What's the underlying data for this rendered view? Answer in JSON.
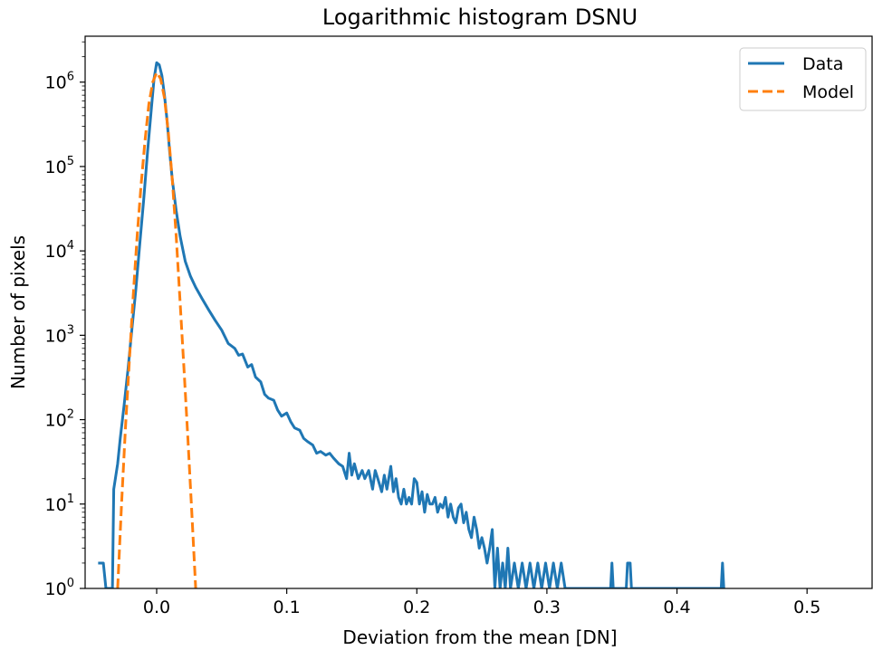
{
  "chart_data": {
    "type": "line",
    "title": "Logarithmic histogram DSNU",
    "xlabel": "Deviation from the mean [DN]",
    "ylabel": "Number of pixels",
    "xlim": [
      -0.055,
      0.55
    ],
    "ylim": [
      1,
      3500000
    ],
    "yscale": "log",
    "grid": false,
    "legend_position": "top-right",
    "xticks": [
      {
        "value": 0.0,
        "label": "0.0"
      },
      {
        "value": 0.1,
        "label": "0.1"
      },
      {
        "value": 0.2,
        "label": "0.2"
      },
      {
        "value": 0.3,
        "label": "0.3"
      },
      {
        "value": 0.4,
        "label": "0.4"
      },
      {
        "value": 0.5,
        "label": "0.5"
      }
    ],
    "yticks": [
      {
        "value": 1,
        "base": "10",
        "exp": "0"
      },
      {
        "value": 10,
        "base": "10",
        "exp": "1"
      },
      {
        "value": 100,
        "base": "10",
        "exp": "2"
      },
      {
        "value": 1000,
        "base": "10",
        "exp": "3"
      },
      {
        "value": 10000,
        "base": "10",
        "exp": "4"
      },
      {
        "value": 100000,
        "base": "10",
        "exp": "5"
      },
      {
        "value": 1000000,
        "base": "10",
        "exp": "6"
      }
    ],
    "series": [
      {
        "name": "Data",
        "color": "#1f77b4",
        "style": "solid",
        "points": [
          [
            -0.045,
            2
          ],
          [
            -0.041,
            2
          ],
          [
            -0.039,
            1
          ],
          [
            -0.034,
            1
          ],
          [
            -0.033,
            15
          ],
          [
            -0.03,
            30
          ],
          [
            -0.028,
            60
          ],
          [
            -0.025,
            150
          ],
          [
            -0.022,
            400
          ],
          [
            -0.019,
            1200
          ],
          [
            -0.016,
            3500
          ],
          [
            -0.013,
            12000
          ],
          [
            -0.01,
            40000
          ],
          [
            -0.007,
            150000
          ],
          [
            -0.004,
            500000
          ],
          [
            -0.002,
            1100000
          ],
          [
            0.0,
            1700000
          ],
          [
            0.002,
            1600000
          ],
          [
            0.004,
            1200000
          ],
          [
            0.006,
            700000
          ],
          [
            0.008,
            350000
          ],
          [
            0.01,
            150000
          ],
          [
            0.012,
            70000
          ],
          [
            0.015,
            30000
          ],
          [
            0.018,
            15000
          ],
          [
            0.022,
            7500
          ],
          [
            0.026,
            5000
          ],
          [
            0.03,
            3700
          ],
          [
            0.035,
            2700
          ],
          [
            0.04,
            2000
          ],
          [
            0.045,
            1500
          ],
          [
            0.05,
            1150
          ],
          [
            0.055,
            800
          ],
          [
            0.06,
            700
          ],
          [
            0.063,
            580
          ],
          [
            0.066,
            600
          ],
          [
            0.07,
            420
          ],
          [
            0.073,
            450
          ],
          [
            0.076,
            320
          ],
          [
            0.08,
            280
          ],
          [
            0.083,
            200
          ],
          [
            0.086,
            180
          ],
          [
            0.09,
            170
          ],
          [
            0.093,
            130
          ],
          [
            0.096,
            110
          ],
          [
            0.1,
            120
          ],
          [
            0.103,
            95
          ],
          [
            0.106,
            80
          ],
          [
            0.11,
            75
          ],
          [
            0.113,
            60
          ],
          [
            0.116,
            55
          ],
          [
            0.12,
            50
          ],
          [
            0.123,
            40
          ],
          [
            0.126,
            42
          ],
          [
            0.13,
            38
          ],
          [
            0.133,
            40
          ],
          [
            0.136,
            35
          ],
          [
            0.14,
            30
          ],
          [
            0.143,
            28
          ],
          [
            0.146,
            20
          ],
          [
            0.148,
            40
          ],
          [
            0.15,
            22
          ],
          [
            0.152,
            30
          ],
          [
            0.155,
            20
          ],
          [
            0.158,
            25
          ],
          [
            0.16,
            20
          ],
          [
            0.163,
            25
          ],
          [
            0.166,
            15
          ],
          [
            0.168,
            25
          ],
          [
            0.17,
            20
          ],
          [
            0.173,
            14
          ],
          [
            0.175,
            22
          ],
          [
            0.177,
            15
          ],
          [
            0.18,
            28
          ],
          [
            0.182,
            14
          ],
          [
            0.184,
            20
          ],
          [
            0.186,
            12
          ],
          [
            0.188,
            10
          ],
          [
            0.19,
            15
          ],
          [
            0.192,
            10
          ],
          [
            0.194,
            12
          ],
          [
            0.196,
            10
          ],
          [
            0.198,
            20
          ],
          [
            0.2,
            18
          ],
          [
            0.202,
            10
          ],
          [
            0.204,
            14
          ],
          [
            0.206,
            8
          ],
          [
            0.208,
            13
          ],
          [
            0.21,
            10
          ],
          [
            0.212,
            10
          ],
          [
            0.214,
            12
          ],
          [
            0.216,
            8
          ],
          [
            0.218,
            10
          ],
          [
            0.22,
            9
          ],
          [
            0.222,
            12
          ],
          [
            0.224,
            7
          ],
          [
            0.226,
            10
          ],
          [
            0.228,
            7
          ],
          [
            0.23,
            6
          ],
          [
            0.232,
            9
          ],
          [
            0.234,
            10
          ],
          [
            0.236,
            6
          ],
          [
            0.238,
            8
          ],
          [
            0.24,
            5
          ],
          [
            0.242,
            4
          ],
          [
            0.244,
            7
          ],
          [
            0.246,
            5
          ],
          [
            0.248,
            3
          ],
          [
            0.25,
            4
          ],
          [
            0.252,
            3
          ],
          [
            0.254,
            2
          ],
          [
            0.256,
            3
          ],
          [
            0.258,
            5
          ],
          [
            0.26,
            1
          ],
          [
            0.262,
            3
          ],
          [
            0.264,
            1
          ],
          [
            0.266,
            2
          ],
          [
            0.268,
            1
          ],
          [
            0.27,
            3
          ],
          [
            0.272,
            1
          ],
          [
            0.275,
            2
          ],
          [
            0.278,
            1
          ],
          [
            0.281,
            2
          ],
          [
            0.284,
            1
          ],
          [
            0.287,
            2
          ],
          [
            0.29,
            1
          ],
          [
            0.293,
            2
          ],
          [
            0.296,
            1
          ],
          [
            0.299,
            2
          ],
          [
            0.302,
            1
          ],
          [
            0.305,
            2
          ],
          [
            0.308,
            1
          ],
          [
            0.311,
            2
          ],
          [
            0.314,
            1
          ],
          [
            0.349,
            1
          ],
          [
            0.35,
            2
          ],
          [
            0.351,
            1
          ],
          [
            0.361,
            1
          ],
          [
            0.362,
            2
          ],
          [
            0.364,
            2
          ],
          [
            0.365,
            1
          ],
          [
            0.434,
            1
          ],
          [
            0.435,
            2
          ],
          [
            0.436,
            1
          ]
        ]
      },
      {
        "name": "Model",
        "color": "#ff7f0e",
        "style": "dashed",
        "points": [
          [
            -0.03,
            1
          ],
          [
            -0.027,
            10
          ],
          [
            -0.024,
            80
          ],
          [
            -0.021,
            500
          ],
          [
            -0.018,
            3000
          ],
          [
            -0.015,
            15000
          ],
          [
            -0.012,
            60000
          ],
          [
            -0.009,
            200000
          ],
          [
            -0.006,
            550000
          ],
          [
            -0.003,
            1000000
          ],
          [
            0.0,
            1300000
          ],
          [
            0.003,
            1100000
          ],
          [
            0.006,
            650000
          ],
          [
            0.009,
            250000
          ],
          [
            0.012,
            70000
          ],
          [
            0.015,
            15000
          ],
          [
            0.018,
            2500
          ],
          [
            0.021,
            400
          ],
          [
            0.024,
            60
          ],
          [
            0.027,
            8
          ],
          [
            0.03,
            1
          ]
        ]
      }
    ]
  }
}
